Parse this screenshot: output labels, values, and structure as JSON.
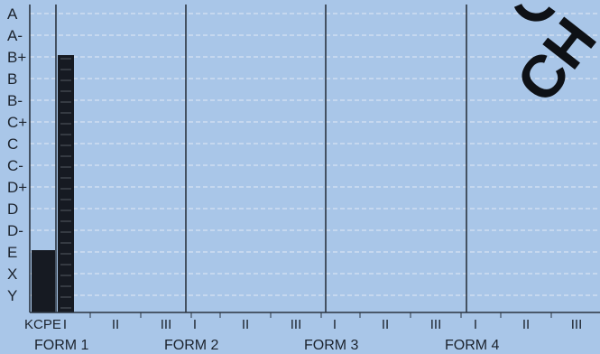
{
  "chart_data": {
    "type": "bar",
    "title": "",
    "xlabel": "",
    "ylabel": "",
    "grade_scale": [
      "Y",
      "X",
      "E",
      "D-",
      "D",
      "D+",
      "C-",
      "C",
      "C+",
      "B-",
      "B",
      "B+",
      "A-",
      "A"
    ],
    "groups": [
      {
        "label": "FORM 1",
        "terms": [
          "I",
          "II",
          "III"
        ]
      },
      {
        "label": "FORM 2",
        "terms": [
          "I",
          "II",
          "III"
        ]
      },
      {
        "label": "FORM 3",
        "terms": [
          "I",
          "II",
          "III"
        ]
      },
      {
        "label": "FORM 4",
        "terms": [
          "I",
          "II",
          "III"
        ]
      }
    ],
    "baseline_label": "KCPE",
    "bars": [
      {
        "category": "KCPE",
        "value": "E",
        "style": "solid"
      },
      {
        "category": "FORM 1 I",
        "value": "B+",
        "style": "dashed"
      }
    ],
    "grid": true,
    "colors": {
      "background": "#a9c6e8",
      "bar": "#161a22",
      "grid": "#e9f0f8",
      "axis": "#2b3440"
    }
  },
  "watermark_text": "CH"
}
